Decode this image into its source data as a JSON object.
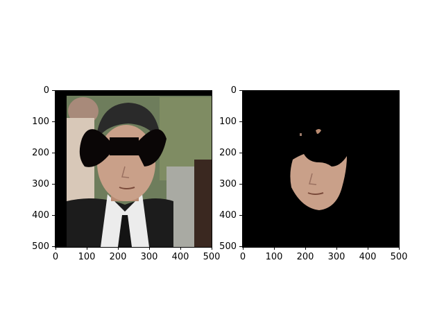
{
  "figure": {
    "panels": [
      {
        "id": "left",
        "content": "face-photo-with-black-bow-mask",
        "x_ticks": [
          "0",
          "100",
          "200",
          "300",
          "400",
          "500"
        ],
        "y_ticks": [
          "0",
          "100",
          "200",
          "300",
          "400",
          "500"
        ],
        "colors": {
          "bg": "#6b7a5a",
          "mask": "#0a0606",
          "suit": "#1a1a1a",
          "skin": "#c9a089",
          "shirt": "#ececec",
          "hair": "#2a2a2a"
        }
      },
      {
        "id": "right",
        "content": "segmented-face-on-black",
        "x_ticks": [
          "0",
          "100",
          "200",
          "300",
          "400",
          "500"
        ],
        "y_ticks": [
          "0",
          "100",
          "200",
          "300",
          "400",
          "500"
        ],
        "colors": {
          "bg": "#000000",
          "skin": "#c9a089"
        }
      }
    ]
  }
}
